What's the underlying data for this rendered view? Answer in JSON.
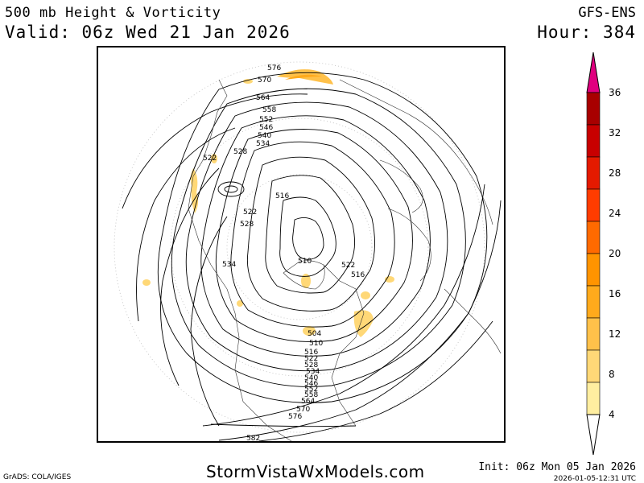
{
  "header": {
    "title": "500 mb Height & Vorticity",
    "valid": "Valid: 06z Wed 21 Jan 2026",
    "model": "GFS-ENS",
    "hour": "Hour: 384"
  },
  "map": {
    "projection": "north-polar-stereographic",
    "contour_labels": [
      {
        "id": "576a",
        "text": "576"
      },
      {
        "id": "570a",
        "text": "570"
      },
      {
        "id": "564a",
        "text": "564"
      },
      {
        "id": "558a",
        "text": "558"
      },
      {
        "id": "552a",
        "text": "552"
      },
      {
        "id": "546a",
        "text": "546"
      },
      {
        "id": "540a",
        "text": "540"
      },
      {
        "id": "534a",
        "text": "534"
      },
      {
        "id": "528a",
        "text": "528"
      },
      {
        "id": "522a",
        "text": "522"
      },
      {
        "id": "516a",
        "text": "516"
      },
      {
        "id": "522b",
        "text": "522"
      },
      {
        "id": "528b",
        "text": "528"
      },
      {
        "id": "534b",
        "text": "534"
      },
      {
        "id": "510a",
        "text": "510"
      },
      {
        "id": "522c",
        "text": "522"
      },
      {
        "id": "516b",
        "text": "516"
      },
      {
        "id": "504a",
        "text": "504"
      },
      {
        "id": "510b",
        "text": "510"
      },
      {
        "id": "516c",
        "text": "516"
      },
      {
        "id": "522d",
        "text": "522"
      },
      {
        "id": "528c",
        "text": "528"
      },
      {
        "id": "534c",
        "text": "534"
      },
      {
        "id": "540b",
        "text": "540"
      },
      {
        "id": "546b",
        "text": "546"
      },
      {
        "id": "552b",
        "text": "552"
      },
      {
        "id": "558b",
        "text": "558"
      },
      {
        "id": "564b",
        "text": "564"
      },
      {
        "id": "570b",
        "text": "570"
      },
      {
        "id": "576b",
        "text": "576"
      },
      {
        "id": "582a",
        "text": "582"
      }
    ]
  },
  "colorbar": {
    "ticks": [
      "36",
      "32",
      "28",
      "24",
      "20",
      "16",
      "12",
      "8",
      "4"
    ],
    "colors": [
      "#e0007f",
      "#8b0000",
      "#a80000",
      "#c80000",
      "#e41a00",
      "#ff3c00",
      "#ff6a00",
      "#ff9400",
      "#ffaa1c",
      "#ffc14a",
      "#ffd877",
      "#ffeea0"
    ]
  },
  "footer": {
    "grads": "GrADS: COLA/IGES",
    "brand": "StormVistaWxModels.com",
    "init": "Init: 06z Mon 05 Jan 2026",
    "timestamp": "2026-01-05-12:31 UTC"
  }
}
